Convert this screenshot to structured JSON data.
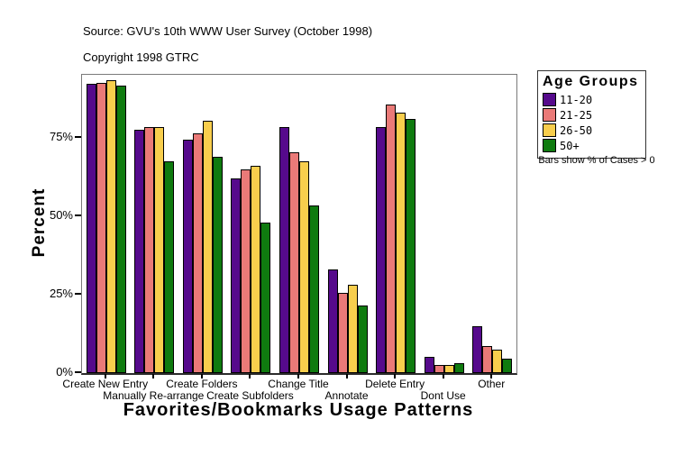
{
  "page": {
    "background": "#ffffff"
  },
  "header": {
    "source_line": "Source: GVU's 10th WWW User Survey (October 1998)",
    "copyright_line": "Copyright 1998 GTRC"
  },
  "chart_data": {
    "type": "bar",
    "title": "",
    "xlabel": "Favorites/Bookmarks Usage Patterns",
    "ylabel": "Percent",
    "ylim": [
      0,
      95.2
    ],
    "grid": false,
    "legend_title": "Age Groups",
    "legend_position": "right",
    "note": "Bars show % of Cases > 0",
    "yticks": [
      {
        "label": "0%",
        "value": 0
      },
      {
        "label": "25%",
        "value": 25
      },
      {
        "label": "50%",
        "value": 50
      },
      {
        "label": "75%",
        "value": 75
      }
    ],
    "categories": [
      {
        "label": "Create New Entry",
        "row": 1
      },
      {
        "label": "Manually Re-arrange",
        "row": 2
      },
      {
        "label": "Create Folders",
        "row": 1
      },
      {
        "label": "Create Subfolders",
        "row": 2
      },
      {
        "label": "Change Title",
        "row": 1
      },
      {
        "label": "Annotate",
        "row": 2
      },
      {
        "label": "Delete Entry",
        "row": 1
      },
      {
        "label": "Dont Use",
        "row": 2
      },
      {
        "label": "Other",
        "row": 1
      }
    ],
    "series": [
      {
        "name": "11-20",
        "color": "#560A8C",
        "values": [
          91.7,
          77.0,
          74.0,
          61.5,
          78.0,
          32.5,
          78.0,
          4.5,
          14.5
        ]
      },
      {
        "name": "21-25",
        "color": "#EA7A78",
        "values": [
          92.0,
          78.0,
          76.0,
          64.5,
          70.0,
          25.0,
          85.0,
          2.0,
          8.0
        ]
      },
      {
        "name": "26-50",
        "color": "#F8CE4D",
        "values": [
          93.0,
          78.0,
          80.0,
          65.5,
          67.0,
          27.5,
          82.5,
          2.0,
          7.0
        ]
      },
      {
        "name": "50+",
        "color": "#0F7B0F",
        "values": [
          91.3,
          67.0,
          68.5,
          47.5,
          53.0,
          21.0,
          80.5,
          2.5,
          4.0
        ]
      }
    ]
  }
}
